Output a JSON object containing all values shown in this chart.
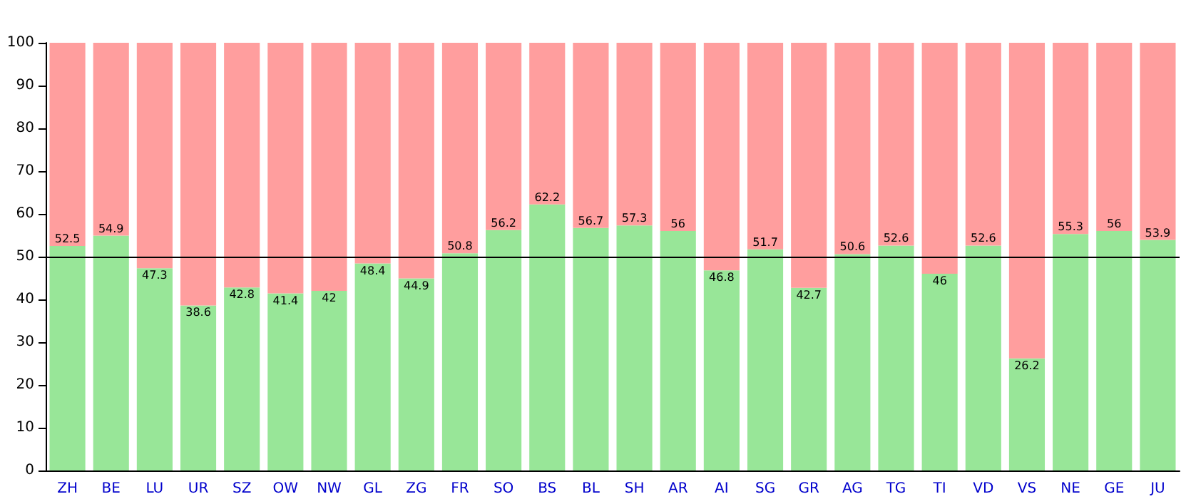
{
  "chart_data": {
    "type": "bar",
    "stacked": true,
    "categories": [
      "ZH",
      "BE",
      "LU",
      "UR",
      "SZ",
      "OW",
      "NW",
      "GL",
      "ZG",
      "FR",
      "SO",
      "BS",
      "BL",
      "SH",
      "AR",
      "AI",
      "SG",
      "GR",
      "AG",
      "TG",
      "TI",
      "VD",
      "VS",
      "NE",
      "GE",
      "JU"
    ],
    "series": [
      {
        "color": "#98e698",
        "values": [
          52.5,
          54.9,
          47.3,
          38.6,
          42.8,
          41.4,
          42,
          48.4,
          44.9,
          50.8,
          56.2,
          62.2,
          56.7,
          57.3,
          56,
          46.8,
          51.7,
          42.7,
          50.6,
          52.6,
          46,
          52.6,
          26.2,
          55.3,
          56,
          53.9
        ],
        "value_labels": [
          "52.5",
          "54.9",
          "47.3",
          "38.6",
          "42.8",
          "41.4",
          "42",
          "48.4",
          "44.9",
          "50.8",
          "56.2",
          "62.2",
          "56.7",
          "57.3",
          "56",
          "46.8",
          "51.7",
          "42.7",
          "50.6",
          "52.6",
          "46",
          "52.6",
          "26.2",
          "55.3",
          "56",
          "53.9"
        ]
      },
      {
        "color": "#ff9e9e",
        "values": [
          47.5,
          45.1,
          52.7,
          61.4,
          57.2,
          58.6,
          58,
          51.6,
          55.1,
          49.2,
          43.8,
          37.8,
          43.3,
          42.7,
          44,
          53.2,
          48.3,
          57.3,
          49.4,
          47.4,
          54,
          47.4,
          73.8,
          44.7,
          44,
          46.1
        ]
      }
    ],
    "ylim": [
      0,
      100
    ],
    "yticks": [
      0,
      10,
      20,
      30,
      40,
      50,
      60,
      70,
      80,
      90,
      100
    ],
    "ref_lines": [
      {
        "axis": "y",
        "value": 50,
        "color": "#000000"
      }
    ]
  }
}
